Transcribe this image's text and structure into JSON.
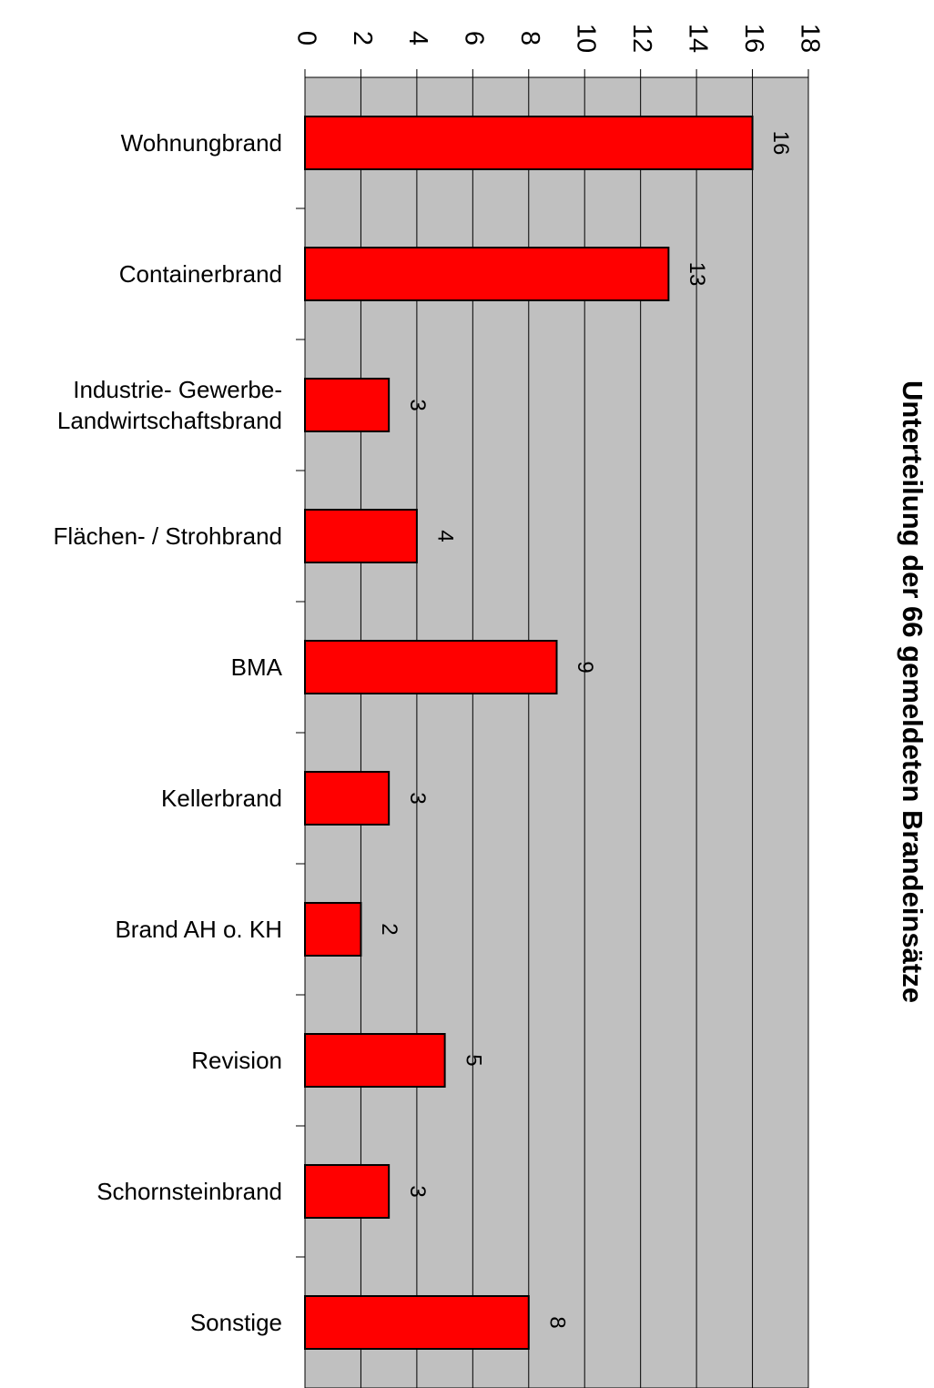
{
  "chart_data": {
    "type": "bar",
    "orientation": "horizontal",
    "title": "Unterteilung der 66 gemeldeten Brandeinsätze",
    "categories": [
      "Wohnungbrand",
      "Containerbrand",
      "Industrie- Gewerbe- Landwirtschaftsbrand",
      "Flächen- / Strohbrand",
      "BMA",
      "Kellerbrand",
      "Brand AH o. KH",
      "Revision",
      "Schornsteinbrand",
      "Sonstige"
    ],
    "values": [
      16,
      13,
      3,
      4,
      9,
      3,
      2,
      5,
      3,
      8
    ],
    "color": "#ff0000",
    "xlim": [
      0,
      18
    ],
    "xticks": [
      0,
      2,
      4,
      6,
      8,
      10,
      12,
      14,
      16,
      18
    ],
    "grid": true
  }
}
